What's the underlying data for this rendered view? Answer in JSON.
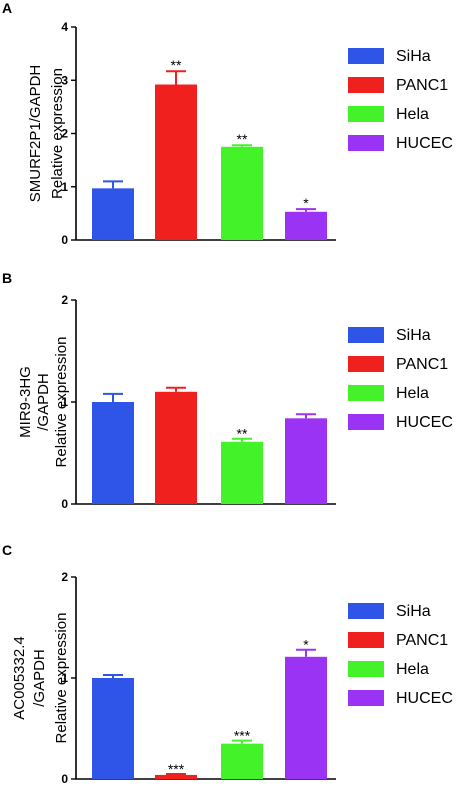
{
  "colors": {
    "SiHa": "#2f55e8",
    "PANC1": "#f0201e",
    "Hela": "#44f22a",
    "HUCEC": "#9b33f5",
    "axis": "#000000"
  },
  "chart_data": [
    {
      "panel_label": "A",
      "type": "bar",
      "categories": [
        "SiHa",
        "PANC1",
        "Hela",
        "HUCEC"
      ],
      "values": [
        0.97,
        2.92,
        1.75,
        0.53
      ],
      "errors": [
        0.13,
        0.25,
        0.03,
        0.05
      ],
      "significance": [
        "",
        "**",
        "**",
        "*"
      ],
      "ylabel_lines": [
        "SMURF2P1/GAPDH",
        "Relative expression"
      ],
      "yticks": [
        "0",
        "1",
        "2",
        "3",
        "4"
      ],
      "ylim": [
        0,
        4
      ],
      "legend": [
        "SiHa",
        "PANC1",
        "Hela",
        "HUCEC"
      ],
      "legend_position": "right"
    },
    {
      "panel_label": "B",
      "type": "bar",
      "categories": [
        "SiHa",
        "PANC1",
        "Hela",
        "HUCEC"
      ],
      "values": [
        1.0,
        1.1,
        0.61,
        0.84
      ],
      "errors": [
        0.08,
        0.04,
        0.03,
        0.04
      ],
      "significance": [
        "",
        "",
        "**",
        ""
      ],
      "ylabel_lines": [
        "MIR9-3HG",
        "/GAPDH",
        "Relative expression"
      ],
      "yticks": [
        "0",
        "1",
        "2"
      ],
      "ylim": [
        0,
        2
      ],
      "legend": [
        "SiHa",
        "PANC1",
        "Hela",
        "HUCEC"
      ],
      "legend_position": "right"
    },
    {
      "panel_label": "C",
      "type": "bar",
      "categories": [
        "SiHa",
        "PANC1",
        "Hela",
        "HUCEC"
      ],
      "values": [
        1.0,
        0.04,
        0.35,
        1.21
      ],
      "errors": [
        0.03,
        0.01,
        0.03,
        0.07
      ],
      "significance": [
        "",
        "***",
        "***",
        "*"
      ],
      "ylabel_lines": [
        "AC005332.4",
        "/GAPDH",
        "Relative expression"
      ],
      "yticks": [
        "0",
        "1",
        "2"
      ],
      "ylim": [
        0,
        2
      ],
      "legend": [
        "SiHa",
        "PANC1",
        "Hela",
        "HUCEC"
      ],
      "legend_position": "right"
    }
  ]
}
